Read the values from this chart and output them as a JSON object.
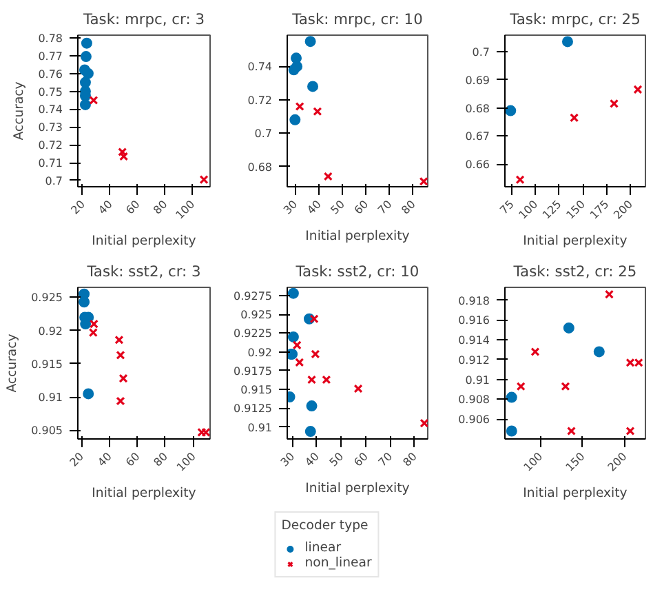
{
  "chart_data": [
    {
      "type": "scatter",
      "title": "Task: mrpc, cr: 3",
      "xlabel": "Initial perplexity",
      "ylabel": "Accuracy",
      "xlim": [
        16.5,
        113
      ],
      "ylim": [
        0.6965,
        0.7815
      ],
      "xticks": [
        20,
        40,
        60,
        80,
        100
      ],
      "yticks": [
        0.7,
        0.71,
        0.72,
        0.73,
        0.74,
        0.75,
        0.76,
        0.77,
        0.78
      ],
      "grid": false,
      "series": [
        {
          "color": "#0072b2",
          "marker": "circle",
          "x": [
            23,
            22.5,
            21.5,
            24,
            22,
            22,
            22,
            22
          ],
          "values": [
            0.777,
            0.7695,
            0.762,
            0.76,
            0.755,
            0.75,
            0.7475,
            0.7425
          ]
        },
        {
          "color": "#e3001b",
          "marker": "cross",
          "x": [
            28,
            49,
            50,
            108.5
          ],
          "values": [
            0.745,
            0.716,
            0.7135,
            0.7005
          ]
        }
      ]
    },
    {
      "type": "scatter",
      "title": "Task: mrpc, cr: 10",
      "xlabel": "Initial perplexity",
      "xlim": [
        26.7,
        86.2
      ],
      "ylim": [
        0.6678,
        0.7588
      ],
      "xticks": [
        30,
        40,
        50,
        60,
        70,
        80
      ],
      "yticks": [
        0.68,
        0.7,
        0.72,
        0.74
      ],
      "grid": false,
      "series": [
        {
          "color": "#0072b2",
          "marker": "circle",
          "x": [
            36.5,
            30.5,
            30.8,
            29.5,
            37.5,
            30
          ],
          "values": [
            0.755,
            0.745,
            0.74,
            0.738,
            0.728,
            0.708
          ]
        },
        {
          "color": "#e3001b",
          "marker": "cross",
          "x": [
            32,
            39.5,
            44,
            84.5
          ],
          "values": [
            0.716,
            0.713,
            0.674,
            0.671
          ]
        }
      ]
    },
    {
      "type": "scatter",
      "title": "Task: mrpc, cr: 25",
      "xlabel": "Initial perplexity",
      "xlim": [
        68,
        216
      ],
      "ylim": [
        0.652,
        0.7058
      ],
      "xticks": [
        75,
        100,
        125,
        150,
        175,
        200
      ],
      "yticks": [
        0.66,
        0.67,
        0.68,
        0.69,
        0.7
      ],
      "grid": false,
      "series": [
        {
          "color": "#0072b2",
          "marker": "circle",
          "x": [
            74,
            134
          ],
          "values": [
            0.679,
            0.7035
          ]
        },
        {
          "color": "#e3001b",
          "marker": "cross",
          "x": [
            84,
            141,
            183,
            208
          ],
          "values": [
            0.6545,
            0.6765,
            0.6815,
            0.6865
          ]
        }
      ]
    },
    {
      "type": "scatter",
      "title": "Task: sst2, cr: 3",
      "xlabel": "Initial perplexity",
      "ylabel": "Accuracy",
      "xlim": [
        17.5,
        112
      ],
      "ylim": [
        0.9037,
        0.9265
      ],
      "xticks": [
        20,
        40,
        60,
        80,
        100
      ],
      "yticks": [
        0.905,
        0.91,
        0.915,
        0.92,
        0.925
      ],
      "grid": false,
      "series": [
        {
          "color": "#0072b2",
          "marker": "circle",
          "x": [
            22,
            22,
            22.5,
            25,
            23,
            25
          ],
          "values": [
            0.9255,
            0.9243,
            0.922,
            0.922,
            0.921,
            0.9105
          ]
        },
        {
          "color": "#e3001b",
          "marker": "cross",
          "x": [
            29,
            28.5,
            47,
            48,
            50,
            48,
            106,
            109
          ],
          "values": [
            0.921,
            0.9197,
            0.9186,
            0.9163,
            0.9128,
            0.9094,
            0.9047,
            0.9047
          ]
        }
      ]
    },
    {
      "type": "scatter",
      "title": "Task: sst2, cr: 10",
      "xlabel": "Initial perplexity",
      "xlim": [
        28,
        85.4
      ],
      "ylim": [
        0.9084,
        0.9286
      ],
      "xticks": [
        30,
        40,
        50,
        60,
        70,
        80
      ],
      "yticks": [
        0.91,
        0.9125,
        0.915,
        0.9175,
        0.92,
        0.9225,
        0.925,
        0.9275
      ],
      "grid": false,
      "legend": "bottom",
      "legend_title": "Decoder type",
      "series": [
        {
          "name": "linear",
          "color": "#0072b2",
          "marker": "circle",
          "x": [
            30.5,
            37,
            30.5,
            30,
            29.5,
            29,
            38,
            37.5
          ],
          "values": [
            0.9278,
            0.9244,
            0.922,
            0.9197,
            0.9197,
            0.914,
            0.9128,
            0.9094
          ]
        },
        {
          "name": "non_linear",
          "color": "#e3001b",
          "marker": "cross",
          "x": [
            39,
            32,
            39.5,
            33,
            38,
            44,
            57,
            84
          ],
          "values": [
            0.9244,
            0.9209,
            0.9197,
            0.9186,
            0.9163,
            0.9163,
            0.9151,
            0.9105
          ]
        }
      ]
    },
    {
      "type": "scatter",
      "title": "Task: sst2, cr: 25",
      "xlabel": "Initial perplexity",
      "xlim": [
        58,
        225
      ],
      "ylim": [
        0.904,
        0.9193
      ],
      "xticks": [
        100,
        150,
        200
      ],
      "yticks": [
        0.906,
        0.908,
        0.91,
        0.912,
        0.914,
        0.916,
        0.918
      ],
      "grid": false,
      "series": [
        {
          "color": "#0072b2",
          "marker": "circle",
          "x": [
            66,
            66,
            134,
            170
          ],
          "values": [
            0.9048,
            0.9082,
            0.9152,
            0.9128
          ]
        },
        {
          "color": "#e3001b",
          "marker": "cross",
          "x": [
            77,
            94,
            130,
            137,
            182,
            207,
            217,
            207
          ],
          "values": [
            0.9093,
            0.9128,
            0.9093,
            0.9048,
            0.9186,
            0.9117,
            0.9117,
            0.9048
          ]
        }
      ]
    }
  ]
}
